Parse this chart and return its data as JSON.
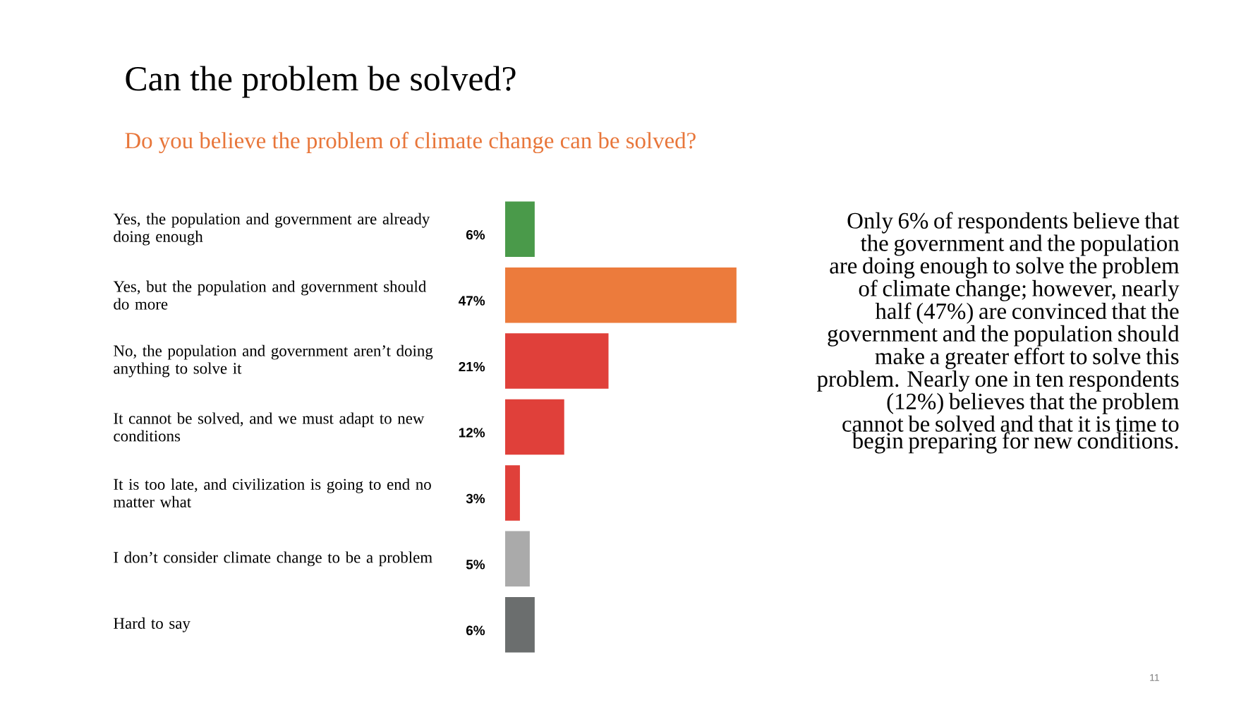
{
  "chart_data": {
    "type": "bar",
    "orientation": "horizontal",
    "title": "Can the problem be solved?",
    "subtitle": "Do you believe the problem of climate change can be solved?",
    "categories": [
      "Yes, the population and government are already doing enough",
      "Yes, but the population and government should do more",
      "No, the population and government aren’t doing anything to solve it",
      "It cannot be solved, and we must adapt to new conditions",
      "It is too late, and civilization is going to end no matter what",
      "I don’t consider climate change to be a problem",
      "Hard to say"
    ],
    "values": [
      6,
      47,
      21,
      12,
      3,
      5,
      6
    ],
    "colors": [
      "#4a9a4a",
      "#ec7b3c",
      "#e0403a",
      "#e0403a",
      "#e0403a",
      "#aaaaaa",
      "#6b6e6e"
    ],
    "value_labels": [
      "6%",
      "47%",
      "21%",
      "12%",
      "3%",
      "5%",
      "6%"
    ],
    "annotations": [
      "Only 6% of respondents believe that the government and the population are doing enough to solve the problem of climate change; however, nearly half (47%) are convinced that the government and the population should make a greater effort to solve this problem. Nearly one in ten respondents (12%) believes that the problem cannot be solved and that it is time to begin preparing for new conditions.",
      "11"
    ]
  }
}
